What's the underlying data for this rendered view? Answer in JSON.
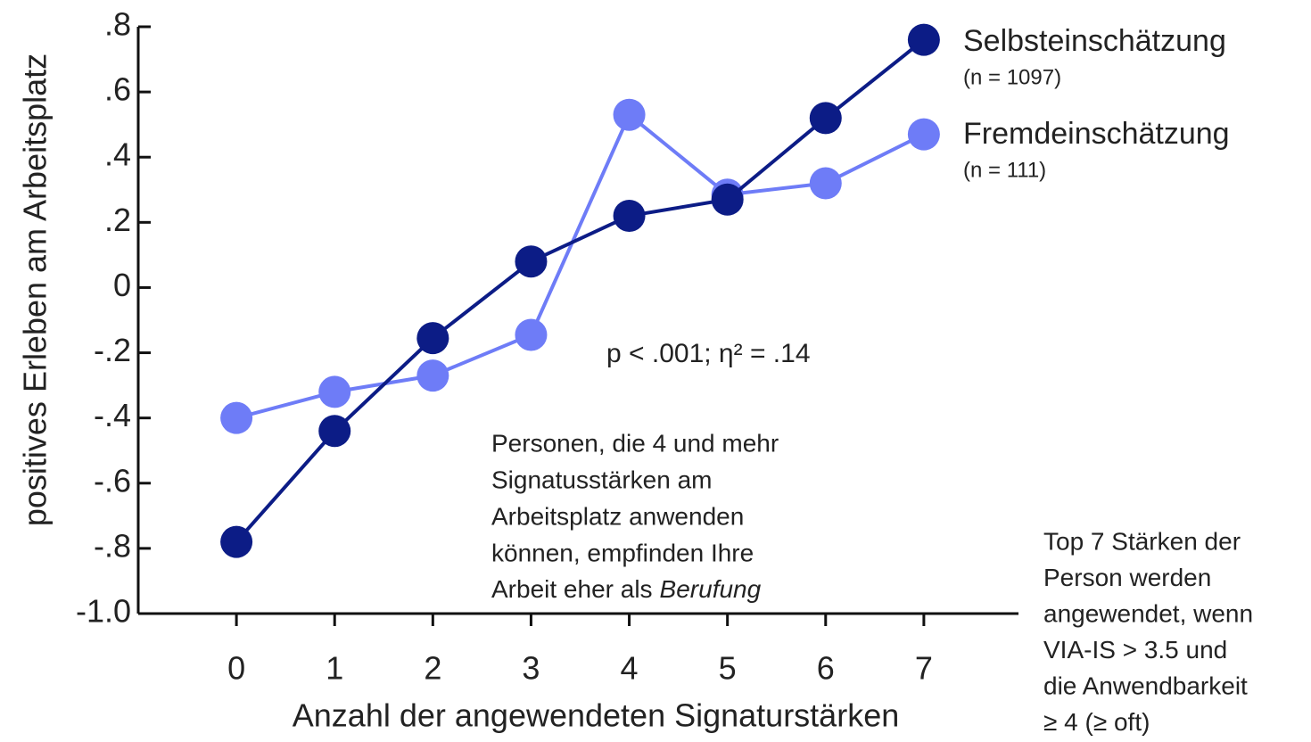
{
  "chart_data": {
    "type": "line",
    "x_label": "Anzahl der angewendeten Signaturstärken",
    "y_label": "positives Erleben am Arbeitsplatz",
    "x": [
      0,
      1,
      2,
      3,
      4,
      5,
      6,
      7
    ],
    "xlim": [
      -1,
      8
    ],
    "xticks": [
      0,
      1,
      2,
      3,
      4,
      5,
      6,
      7
    ],
    "ylim": [
      -1.0,
      0.8
    ],
    "yticks": [
      {
        "value": 0.8,
        "label": ".8"
      },
      {
        "value": 0.6,
        "label": ".6"
      },
      {
        "value": 0.4,
        "label": ".4"
      },
      {
        "value": 0.2,
        "label": ".2"
      },
      0,
      {
        "value": -0.2,
        "label": "-.2"
      },
      {
        "value": -0.4,
        "label": "-.4"
      },
      {
        "value": -0.6,
        "label": "-.6"
      },
      {
        "value": -0.8,
        "label": "-.8"
      },
      {
        "value": -1.0,
        "label": "-1.0"
      }
    ],
    "series": [
      {
        "name": "Selbsteinschätzung",
        "note": "(n = 1097)",
        "color": "#0c1c86",
        "values": [
          -0.78,
          -0.44,
          -0.155,
          0.08,
          0.22,
          0.27,
          0.52,
          0.76
        ]
      },
      {
        "name": "Fremdeinschätzung",
        "note": "(n = 111)",
        "color": "#6e7cf7",
        "values": [
          -0.4,
          -0.32,
          -0.27,
          -0.145,
          0.53,
          0.285,
          0.32,
          0.47
        ]
      }
    ],
    "stat_annotation": {
      "text": "p < .001; η² = .14",
      "color": "#5a9a3a"
    },
    "annotation": {
      "lines": [
        "Personen, die 4 und mehr",
        "Signatusstärken am",
        "Arbeitsplatz anwenden",
        "können, empfinden Ihre"
      ],
      "last_line": "Arbeit eher als",
      "last_line_italic": "Berufung"
    },
    "side_note": [
      "Top 7 Stärken der",
      "Person werden",
      "angewendet, wenn",
      "VIA-IS > 3.5 und",
      "die Anwendbarkeit",
      "≥ 4 (≥ oft)"
    ]
  }
}
